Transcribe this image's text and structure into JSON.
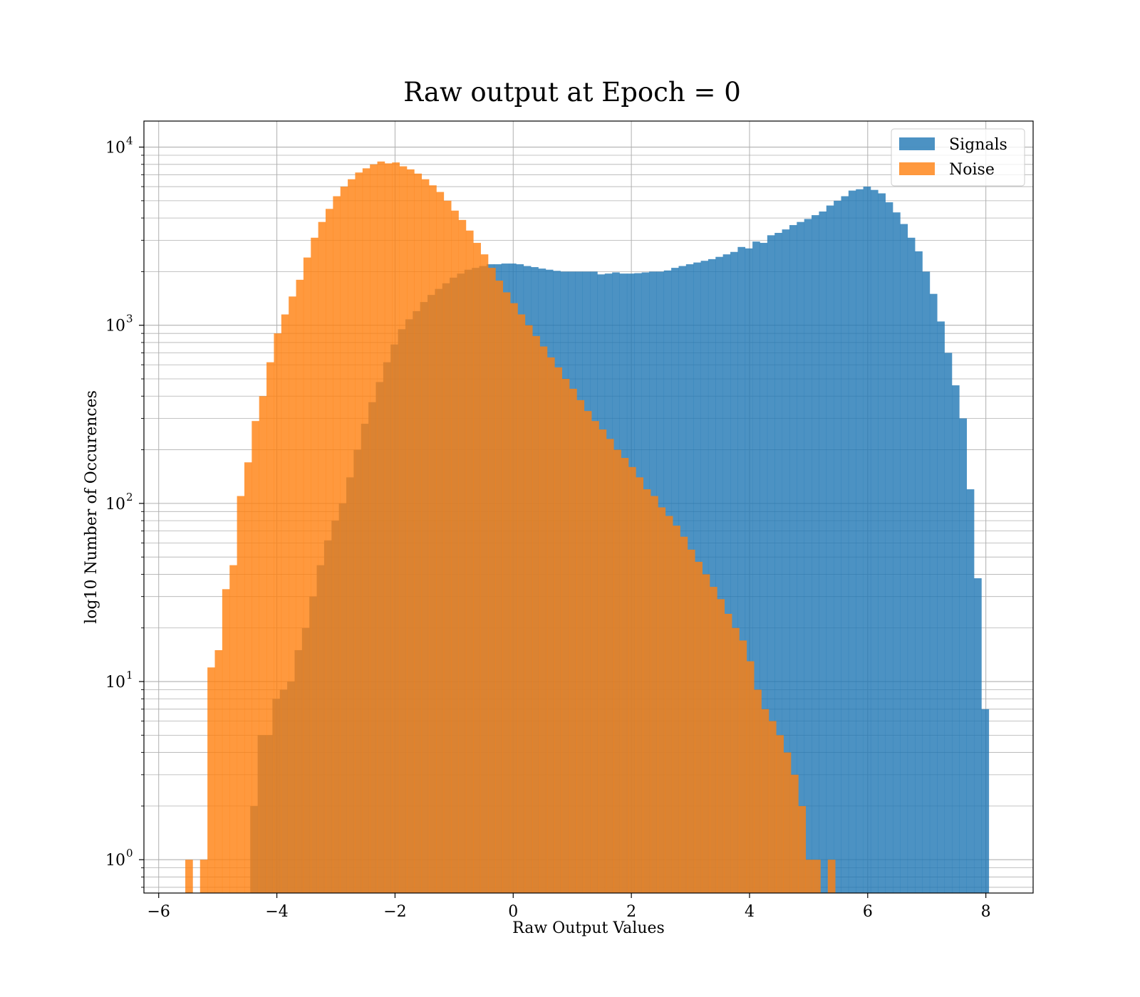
{
  "chart_data": {
    "type": "histogram",
    "title": "Raw output at Epoch = 0",
    "xlabel": "Raw Output Values",
    "ylabel": "log10 Number of Occurences",
    "xlim": [
      -6.25,
      8.8
    ],
    "ylim": [
      0.65,
      14000
    ],
    "yscale": "log",
    "grid": true,
    "legend_position": "top-right",
    "x_ticks": [
      {
        "value": -6,
        "label": "−6"
      },
      {
        "value": -4,
        "label": "−4"
      },
      {
        "value": -2,
        "label": "−2"
      },
      {
        "value": 0,
        "label": "0"
      },
      {
        "value": 2,
        "label": "2"
      },
      {
        "value": 4,
        "label": "4"
      },
      {
        "value": 6,
        "label": "6"
      },
      {
        "value": 8,
        "label": "8"
      }
    ],
    "y_ticks": [
      {
        "value": 1,
        "base": "10",
        "exp": "0"
      },
      {
        "value": 10,
        "base": "10",
        "exp": "1"
      },
      {
        "value": 100,
        "base": "10",
        "exp": "2"
      },
      {
        "value": 1000,
        "base": "10",
        "exp": "3"
      },
      {
        "value": 10000,
        "base": "10",
        "exp": "4"
      }
    ],
    "series": [
      {
        "name": "Signals",
        "color": "#1f77b4",
        "opacity": 0.8,
        "bin_start": -4.45,
        "bin_width": 0.125,
        "counts": [
          2,
          5,
          5,
          8,
          9,
          10,
          15,
          20,
          30,
          45,
          62,
          80,
          100,
          140,
          200,
          280,
          370,
          480,
          620,
          780,
          950,
          1080,
          1200,
          1350,
          1480,
          1600,
          1720,
          1850,
          1950,
          2050,
          2100,
          2150,
          2200,
          2200,
          2220,
          2220,
          2200,
          2150,
          2120,
          2080,
          2050,
          2020,
          2000,
          2000,
          2000,
          2000,
          2000,
          1930,
          1950,
          1980,
          1950,
          1950,
          1960,
          1980,
          2000,
          2000,
          2030,
          2100,
          2150,
          2200,
          2250,
          2300,
          2350,
          2420,
          2500,
          2580,
          2750,
          2700,
          2950,
          2900,
          3200,
          3300,
          3450,
          3650,
          3800,
          3950,
          4150,
          4350,
          4700,
          5000,
          5300,
          5700,
          5800,
          6000,
          5750,
          5500,
          4900,
          4300,
          3700,
          3100,
          2600,
          2000,
          1500,
          1050,
          700,
          460,
          300,
          120,
          38,
          7
        ]
      },
      {
        "name": "Noise",
        "color": "#ff7f0e",
        "opacity": 0.8,
        "bin_start": -5.55,
        "bin_width": 0.125,
        "counts": [
          1,
          0,
          1,
          12,
          15,
          33,
          45,
          110,
          170,
          290,
          400,
          620,
          900,
          1150,
          1450,
          1800,
          2400,
          3100,
          3800,
          4500,
          5300,
          6000,
          6600,
          7200,
          7600,
          8000,
          8300,
          8100,
          8200,
          7800,
          7500,
          7100,
          6600,
          6100,
          5600,
          5000,
          4400,
          3900,
          3400,
          2900,
          2500,
          2100,
          1780,
          1530,
          1330,
          1150,
          1000,
          870,
          760,
          660,
          580,
          500,
          440,
          380,
          330,
          290,
          260,
          230,
          200,
          180,
          160,
          140,
          120,
          110,
          95,
          85,
          75,
          65,
          55,
          47,
          40,
          34,
          29,
          24,
          20,
          17,
          13,
          9,
          7,
          6,
          5,
          4,
          3,
          2,
          1,
          1,
          0,
          1
        ]
      }
    ]
  }
}
